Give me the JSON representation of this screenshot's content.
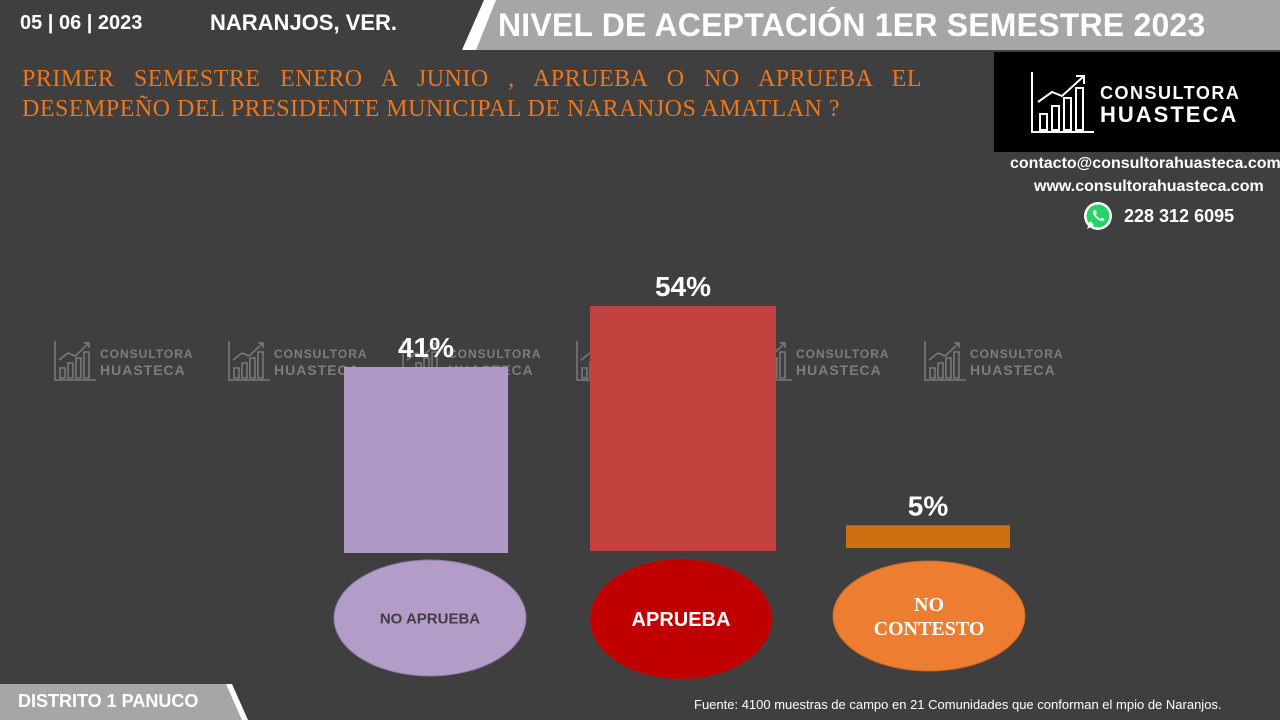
{
  "header": {
    "date": "05 | 06 | 2023",
    "place": "NARANJOS, VER.",
    "title": "NIVEL DE ACEPTACIÓN  1ER SEMESTRE 2023"
  },
  "question": "PRIMER SEMESTRE ENERO A JUNIO , APRUEBA O NO APRUEBA EL DESEMPEÑO DEL PRESIDENTE MUNICIPAL DE  NARANJOS AMATLAN ?",
  "logo": {
    "line1": "CONSULTORA",
    "line2": "HUASTECA",
    "icon": "chart-growth-icon"
  },
  "contact": {
    "email": "contacto@consultorahuasteca.com",
    "web": "www.consultorahuasteca.com",
    "phone": "228 312 6095",
    "phone_icon": "whatsapp-icon"
  },
  "watermark": {
    "line1": "CONSULTORA",
    "line2": "HUASTECA"
  },
  "chart_data": {
    "type": "bar",
    "categories": [
      "NO APRUEBA",
      "APRUEBA",
      "NO CONTESTO"
    ],
    "values": [
      41,
      54,
      5
    ],
    "value_labels": [
      "41%",
      "54%",
      "5%"
    ],
    "colors": [
      "#b099c6",
      "#c0413e",
      "#cd7011"
    ],
    "category_colors": [
      "#b39cc8",
      "#c00000",
      "#ed7d31"
    ],
    "title": "NIVEL DE ACEPTACIÓN  1ER SEMESTRE 2023",
    "ylim": [
      0,
      100
    ],
    "grid": false
  },
  "footer": {
    "district": "DISTRITO 1 PANUCO",
    "source": "Fuente: 4100  muestras de campo en  21 Comunidades que conforman el mpio de  Naranjos."
  }
}
